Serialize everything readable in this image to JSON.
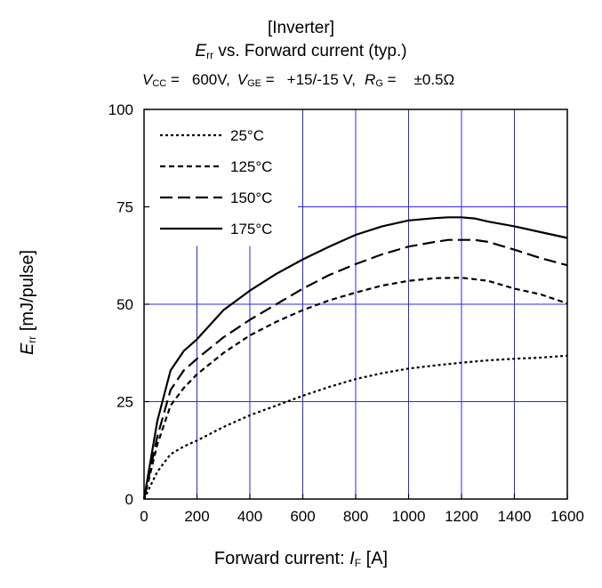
{
  "header": {
    "title_line1": "[Inverter]",
    "title_line2_sym": "E",
    "title_line2_sub": "rr",
    "title_line2_rest": " vs. Forward current  (typ.)",
    "conditions": [
      {
        "sym": "V",
        "sub": "CC",
        "eq": " =",
        "val": "600V,"
      },
      {
        "sym": "V",
        "sub": "GE",
        "eq": " =",
        "val": "+15/-15 V,"
      },
      {
        "sym": "R",
        "sub": "G",
        "eq": " =",
        "val": "±0.5Ω"
      }
    ]
  },
  "chart_data": {
    "type": "line",
    "xlabel_text": "Forward current: ",
    "xlabel_sym": "I",
    "xlabel_sub": "F",
    "xlabel_unit": " [A]",
    "ylabel_sym": "E",
    "ylabel_sub": "rr",
    "ylabel_unit": " [mJ/pulse]",
    "xlim": [
      0,
      1600
    ],
    "ylim": [
      0,
      100
    ],
    "xticks": [
      0,
      200,
      400,
      600,
      800,
      1000,
      1200,
      1400,
      1600
    ],
    "yticks": [
      0,
      25,
      50,
      75,
      100
    ],
    "grid": true,
    "legend_position": "top-left",
    "series": [
      {
        "name": "25°C",
        "dash": "3,3",
        "x": [
          0,
          50,
          100,
          150,
          200,
          300,
          400,
          500,
          600,
          700,
          800,
          900,
          1000,
          1100,
          1200,
          1300,
          1400,
          1500,
          1600
        ],
        "y": [
          0,
          7,
          11.5,
          13.5,
          15,
          18.5,
          21.5,
          24,
          26.5,
          28.8,
          30.8,
          32.3,
          33.5,
          34.3,
          35,
          35.6,
          36,
          36.3,
          36.8
        ]
      },
      {
        "name": "125°C",
        "dash": "6,4",
        "x": [
          0,
          50,
          100,
          150,
          200,
          300,
          400,
          500,
          600,
          700,
          800,
          900,
          1000,
          1100,
          1200,
          1300,
          1400,
          1500,
          1600
        ],
        "y": [
          0,
          14,
          24,
          28.5,
          32,
          37.5,
          42,
          45.5,
          48.5,
          51,
          53,
          54.8,
          56,
          56.7,
          56.8,
          56,
          54,
          52.5,
          50.2
        ]
      },
      {
        "name": "150°C",
        "dash": "14,6",
        "x": [
          0,
          50,
          100,
          150,
          200,
          300,
          400,
          500,
          600,
          700,
          800,
          900,
          1000,
          1100,
          1150,
          1250,
          1300,
          1400,
          1500,
          1600
        ],
        "y": [
          0,
          16,
          28,
          33,
          36,
          41.5,
          46,
          50,
          54,
          57.5,
          60.3,
          62.8,
          64.8,
          66,
          66.5,
          66.5,
          66,
          64,
          61.8,
          60
        ]
      },
      {
        "name": "175°C",
        "dash": "",
        "x": [
          0,
          50,
          100,
          150,
          200,
          300,
          400,
          500,
          600,
          700,
          800,
          900,
          1000,
          1100,
          1150,
          1200,
          1250,
          1300,
          1400,
          1500,
          1600
        ],
        "y": [
          0,
          20,
          33,
          38,
          41,
          48.5,
          53.5,
          57.8,
          61.5,
          64.8,
          67.8,
          70,
          71.5,
          72.1,
          72.3,
          72.3,
          72,
          71.2,
          70,
          68.5,
          67
        ]
      }
    ]
  }
}
